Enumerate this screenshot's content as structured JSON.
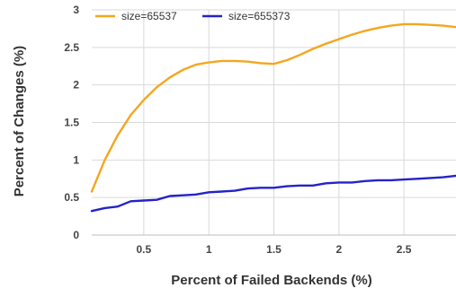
{
  "chart_data": {
    "type": "line",
    "title": "",
    "xlabel": "Percent of Failed Backends (%)",
    "ylabel": "Percent of Changes (%)",
    "xlim": [
      0.1,
      2.9
    ],
    "ylim": [
      0,
      3
    ],
    "x_ticks": [
      0.5,
      1,
      1.5,
      2,
      2.5
    ],
    "x_tick_labels": [
      "0.5",
      "1",
      "1.5",
      "2",
      "2.5"
    ],
    "y_ticks": [
      0,
      0.5,
      1,
      1.5,
      2,
      2.5,
      3
    ],
    "y_tick_labels": [
      "0",
      "0.5",
      "1",
      "1.5",
      "2",
      "2.5",
      "3"
    ],
    "grid": true,
    "legend_position": "top-left",
    "series": [
      {
        "name": "size=65537",
        "color": "#f4a61f",
        "x": [
          0.1,
          0.2,
          0.3,
          0.4,
          0.5,
          0.6,
          0.7,
          0.8,
          0.9,
          1.0,
          1.1,
          1.2,
          1.3,
          1.4,
          1.5,
          1.6,
          1.7,
          1.8,
          1.9,
          2.0,
          2.1,
          2.2,
          2.3,
          2.4,
          2.5,
          2.6,
          2.7,
          2.8,
          2.9
        ],
        "y": [
          0.58,
          1.0,
          1.33,
          1.6,
          1.8,
          1.97,
          2.1,
          2.2,
          2.27,
          2.3,
          2.32,
          2.32,
          2.31,
          2.29,
          2.28,
          2.33,
          2.4,
          2.48,
          2.55,
          2.61,
          2.67,
          2.72,
          2.76,
          2.79,
          2.81,
          2.81,
          2.8,
          2.79,
          2.77
        ]
      },
      {
        "name": "size=655373",
        "color": "#2323c8",
        "x": [
          0.1,
          0.2,
          0.3,
          0.4,
          0.5,
          0.6,
          0.7,
          0.8,
          0.9,
          1.0,
          1.1,
          1.2,
          1.3,
          1.4,
          1.5,
          1.6,
          1.7,
          1.8,
          1.9,
          2.0,
          2.1,
          2.2,
          2.3,
          2.4,
          2.5,
          2.6,
          2.7,
          2.8,
          2.9
        ],
        "y": [
          0.32,
          0.36,
          0.38,
          0.45,
          0.46,
          0.47,
          0.52,
          0.53,
          0.54,
          0.57,
          0.58,
          0.59,
          0.62,
          0.63,
          0.63,
          0.65,
          0.66,
          0.66,
          0.69,
          0.7,
          0.7,
          0.72,
          0.73,
          0.73,
          0.74,
          0.75,
          0.76,
          0.77,
          0.79
        ]
      }
    ]
  }
}
